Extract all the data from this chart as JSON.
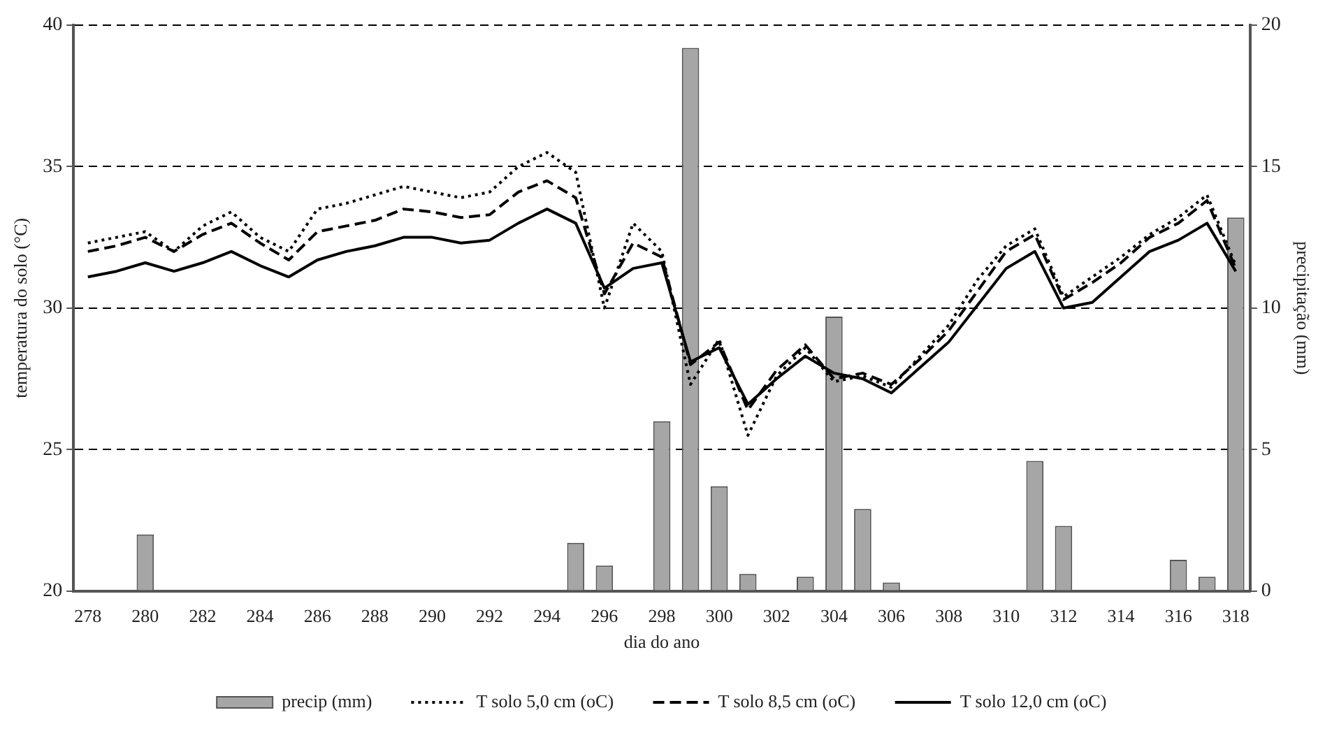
{
  "chart_data": {
    "type": "line",
    "xlabel": "dia do ano",
    "ylabel": "temperatura do solo (°C)",
    "y2label": "precipitação (mm)",
    "categories": [
      "278",
      null,
      "280",
      null,
      "282",
      null,
      "284",
      null,
      "286",
      null,
      "288",
      null,
      "290",
      null,
      "292",
      null,
      "294",
      null,
      "296",
      null,
      "298",
      null,
      "300",
      null,
      "302",
      null,
      "304",
      null,
      "306",
      null,
      "308",
      null,
      "310",
      null,
      "312",
      null,
      "314",
      null,
      "316",
      null,
      "318"
    ],
    "ylim": [
      20,
      40
    ],
    "yticks": [
      20,
      25,
      30,
      35,
      40
    ],
    "y2lim": [
      0,
      20
    ],
    "y2ticks": [
      0,
      5,
      10,
      15,
      20
    ],
    "grid": "y",
    "legend": "bottom",
    "marker": "none",
    "series": [
      {
        "name": "precip (mm)",
        "type": "bar",
        "axis": "y2",
        "color": "#a6a6a6",
        "values": [
          null,
          null,
          2.0,
          null,
          null,
          null,
          null,
          null,
          null,
          null,
          null,
          null,
          null,
          null,
          null,
          null,
          null,
          1.7,
          0.9,
          null,
          6.0,
          19.2,
          3.7,
          0.6,
          null,
          0.5,
          9.7,
          2.9,
          0.3,
          null,
          null,
          null,
          null,
          4.6,
          2.3,
          null,
          null,
          null,
          1.1,
          0.5,
          13.2
        ]
      },
      {
        "name": "T solo 5,0 cm (oC)",
        "line_style": "dotted",
        "color": "#000000",
        "values": [
          32.3,
          32.5,
          32.7,
          32.0,
          32.9,
          33.4,
          32.5,
          32.0,
          33.5,
          33.7,
          34.0,
          34.3,
          34.1,
          33.9,
          34.1,
          35.0,
          35.5,
          34.8,
          30.0,
          33.0,
          32.0,
          27.3,
          28.9,
          25.5,
          27.6,
          28.6,
          27.4,
          27.6,
          27.2,
          28.3,
          29.4,
          31.0,
          32.2,
          32.8,
          30.4,
          31.1,
          31.8,
          32.6,
          33.2,
          34.0,
          31.5
        ]
      },
      {
        "name": "T solo 8,5 cm (oC)",
        "line_style": "dashed",
        "color": "#000000",
        "values": [
          32.0,
          32.2,
          32.5,
          32.0,
          32.6,
          33.0,
          32.3,
          31.7,
          32.7,
          32.9,
          33.1,
          33.5,
          33.4,
          33.2,
          33.3,
          34.1,
          34.5,
          33.9,
          30.5,
          32.3,
          31.8,
          28.0,
          28.8,
          26.4,
          27.8,
          28.7,
          27.5,
          27.7,
          27.3,
          28.2,
          29.2,
          30.6,
          32.0,
          32.6,
          30.3,
          30.9,
          31.6,
          32.5,
          33.0,
          33.8,
          31.4
        ]
      },
      {
        "name": "T solo 12,0 cm (oC)",
        "line_style": "solid",
        "color": "#000000",
        "values": [
          31.1,
          31.3,
          31.6,
          31.3,
          31.6,
          32.0,
          31.5,
          31.1,
          31.7,
          32.0,
          32.2,
          32.5,
          32.5,
          32.3,
          32.4,
          33.0,
          33.5,
          33.0,
          30.7,
          31.4,
          31.6,
          28.1,
          28.6,
          26.6,
          27.5,
          28.3,
          27.7,
          27.5,
          27.0,
          27.9,
          28.8,
          30.1,
          31.4,
          32.0,
          30.0,
          30.2,
          31.1,
          32.0,
          32.4,
          33.0,
          31.3
        ]
      }
    ]
  }
}
